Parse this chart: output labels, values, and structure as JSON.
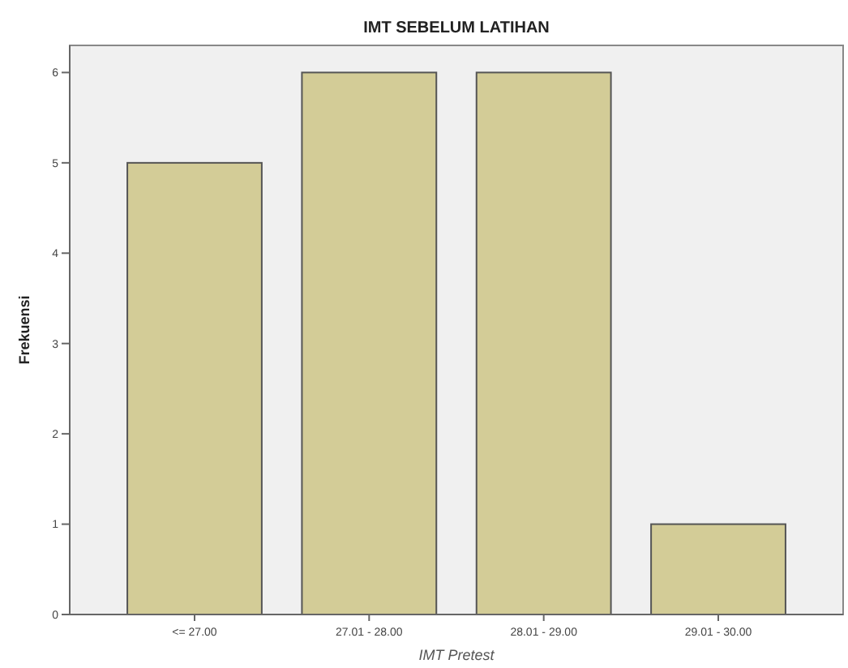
{
  "chart_data": {
    "type": "bar",
    "title": "IMT SEBELUM LATIHAN",
    "xlabel": "IMT Pretest",
    "ylabel": "Frekuensi",
    "categories": [
      "<= 27.00",
      "27.01 - 28.00",
      "28.01 - 29.00",
      "29.01 - 30.00"
    ],
    "values": [
      5,
      6,
      6,
      1
    ],
    "color": "#d3cc97",
    "ylim": [
      0,
      6.3
    ],
    "yticks": [
      0,
      1,
      2,
      3,
      4,
      5,
      6
    ],
    "grid": false
  }
}
